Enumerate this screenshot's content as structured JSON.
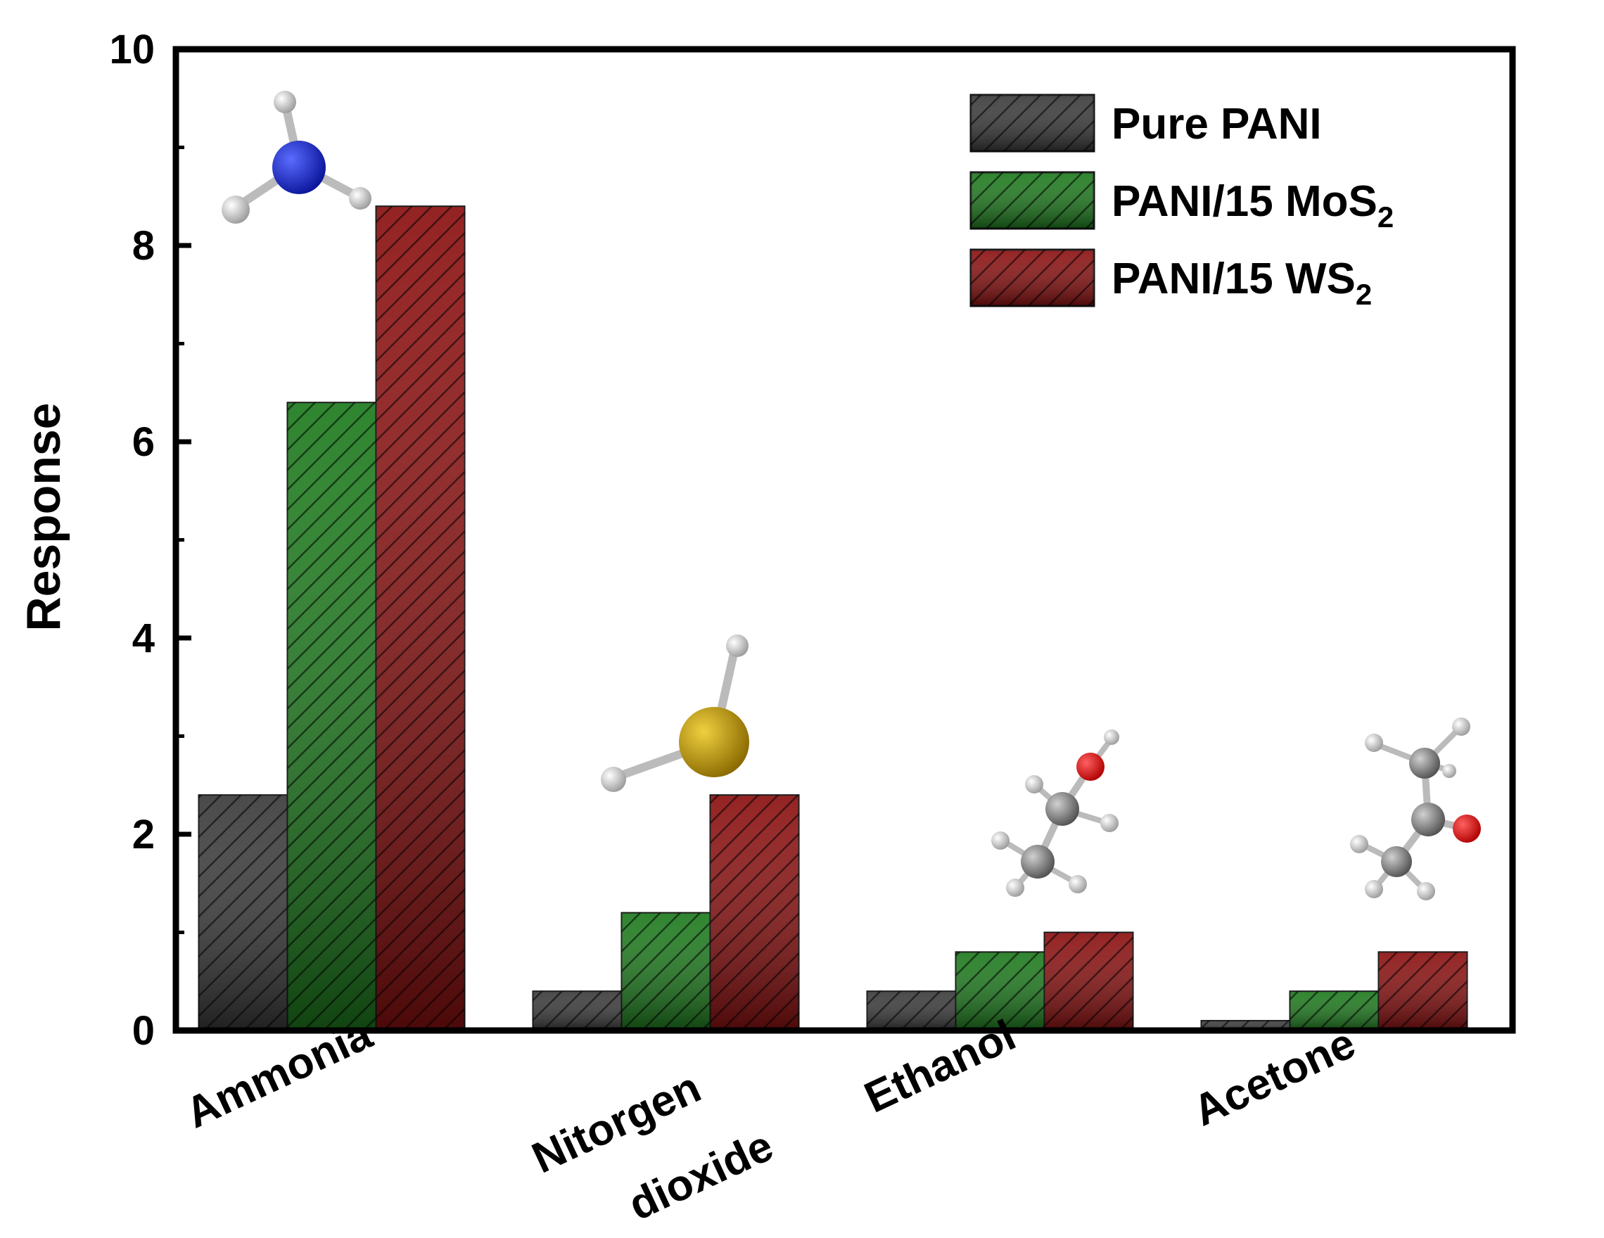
{
  "chart_data": {
    "type": "bar",
    "ylabel": "Response",
    "ylim": [
      0,
      10
    ],
    "yticks": [
      0,
      2,
      4,
      6,
      8,
      10
    ],
    "categories": [
      [
        "Ammonia"
      ],
      [
        "Nitorgen",
        "dioxide"
      ],
      [
        "Ethanol"
      ],
      [
        "Acetone"
      ]
    ],
    "series": [
      {
        "name": "Pure PANI",
        "color": "#3a3a3a",
        "values": [
          2.4,
          0.4,
          0.4,
          0.1
        ]
      },
      {
        "name": "PANI/15 MoS",
        "subscript": "2",
        "color": "#1d7a1d",
        "values": [
          6.4,
          1.2,
          0.8,
          0.4
        ]
      },
      {
        "name": "PANI/15 WS",
        "subscript": "2",
        "color": "#8b1010",
        "values": [
          8.4,
          2.4,
          1.0,
          0.8
        ]
      }
    ],
    "legend_position": "top-right",
    "molecule_icons": [
      "ammonia-molecule-icon",
      "hydrogen-sulfide-molecule-icon",
      "ethanol-molecule-icon",
      "acetone-molecule-icon"
    ]
  }
}
